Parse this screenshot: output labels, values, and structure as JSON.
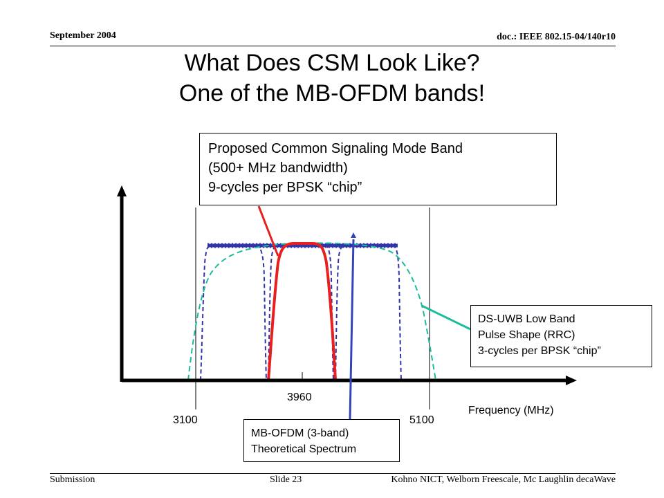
{
  "header": {
    "date": "September 2004",
    "doc": "doc.: IEEE 802.15-04/140r10"
  },
  "title": {
    "line1": "What Does CSM Look Like?",
    "line2": "One of the MB-OFDM bands!"
  },
  "callouts": {
    "proposed": {
      "line1": "Proposed Common Signaling Mode Band",
      "line2": "(500+ MHz bandwidth)",
      "line3": "9-cycles per BPSK “chip”"
    },
    "dsuwb": {
      "line1": "DS-UWB Low Band",
      "line2": "Pulse Shape (RRC)",
      "line3": "3-cycles per BPSK “chip”"
    },
    "mbofdm": {
      "line1": "MB-OFDM (3-band)",
      "line2": "Theoretical Spectrum"
    }
  },
  "axis": {
    "tick_3100": "3100",
    "tick_3960": "3960",
    "tick_5100": "5100",
    "xlabel": "Frequency (MHz)"
  },
  "colors": {
    "mbofdm": "#3333aa",
    "dsuwb": "#1abc9c",
    "csm": "#e81f1f",
    "pointer_blue": "#3344bb"
  },
  "footer": {
    "left": "Submission",
    "center": "Slide 23",
    "right": "Kohno NICT, Welborn Freescale,  Mc Laughlin decaWave"
  }
}
